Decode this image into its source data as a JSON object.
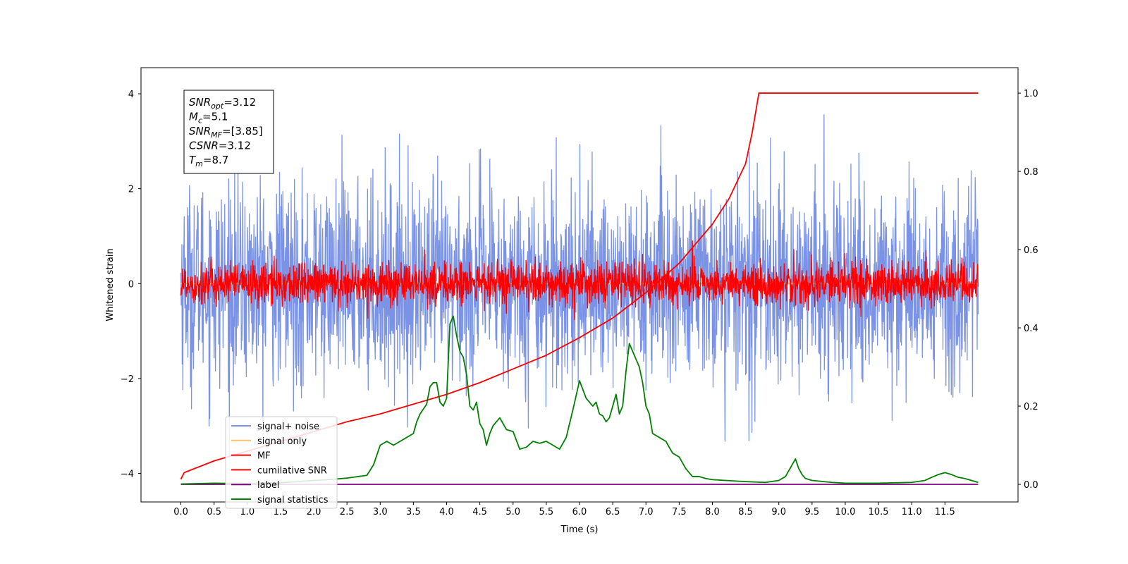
{
  "chart_data": {
    "type": "line",
    "xlabel": "Time (s)",
    "ylabel": "Whitened strain",
    "xlim": [
      -0.6,
      12.6
    ],
    "ylim_left": [
      -4.6,
      4.55
    ],
    "ylim_right": [
      -0.045,
      1.065
    ],
    "x_ticks": [
      "0.0",
      "0.5",
      "1.0",
      "1.5",
      "2.0",
      "2.5",
      "3.0",
      "3.5",
      "4.0",
      "4.5",
      "5.0",
      "5.5",
      "6.0",
      "6.5",
      "7.0",
      "7.5",
      "8.0",
      "8.5",
      "9.0",
      "9.5",
      "10.0",
      "10.5",
      "11.0",
      "11.5"
    ],
    "y_ticks_left": [
      "4",
      "2",
      "0",
      "−2",
      "−4"
    ],
    "y_ticks_right": [
      "1.0",
      "0.8",
      "0.6",
      "0.4",
      "0.2",
      "0.0"
    ],
    "legend_position": "lower left",
    "annotation": [
      {
        "base": "SNR",
        "sub": "opt",
        "value": "=3.12"
      },
      {
        "base": "M",
        "sub": "c",
        "value": "=5.1"
      },
      {
        "base": "SNR",
        "sub": "MF",
        "value": "=[3.85]"
      },
      {
        "base": "CSNR",
        "sub": "",
        "value": "=3.12"
      },
      {
        "base": "T",
        "sub": "m",
        "value": "=8.7"
      }
    ],
    "series": [
      {
        "name": "signal+ noise",
        "color": "#7b93e6",
        "axis": "left",
        "kind": "noise",
        "x_range": [
          0,
          12
        ],
        "sigma": 1.05,
        "spike_max": 4.1
      },
      {
        "name": "signal only",
        "color": "#ffc266",
        "axis": "left",
        "kind": "flat",
        "x": [
          0,
          12
        ],
        "y": [
          0,
          0
        ]
      },
      {
        "name": "MF",
        "color": "#ff0000",
        "axis": "left",
        "kind": "noise",
        "x_range": [
          0,
          12
        ],
        "sigma": 0.22,
        "spike_max": 1.0
      },
      {
        "name": "cumilative SNR",
        "color": "#ff0000",
        "axis": "right",
        "kind": "line",
        "x": [
          0.0,
          0.05,
          0.5,
          1.0,
          1.5,
          2.0,
          2.5,
          3.0,
          3.5,
          4.0,
          4.5,
          5.0,
          5.5,
          6.0,
          6.5,
          7.0,
          7.5,
          8.0,
          8.25,
          8.5,
          8.6,
          8.7,
          12.0
        ],
        "y": [
          0.013,
          0.03,
          0.06,
          0.085,
          0.11,
          0.135,
          0.16,
          0.18,
          0.205,
          0.23,
          0.26,
          0.295,
          0.33,
          0.375,
          0.425,
          0.49,
          0.565,
          0.665,
          0.73,
          0.82,
          0.9,
          1.0,
          1.0
        ]
      },
      {
        "name": "label",
        "color": "#800080",
        "axis": "right",
        "kind": "line",
        "x": [
          0.0,
          12.0
        ],
        "y": [
          0.0,
          0.0
        ]
      },
      {
        "name": "signal statistics",
        "color": "#008000",
        "axis": "right",
        "kind": "line",
        "x": [
          0.0,
          0.5,
          1.0,
          1.5,
          2.0,
          2.3,
          2.5,
          2.8,
          2.9,
          3.0,
          3.1,
          3.2,
          3.3,
          3.4,
          3.5,
          3.55,
          3.6,
          3.7,
          3.75,
          3.8,
          3.85,
          3.9,
          3.95,
          4.0,
          4.05,
          4.1,
          4.15,
          4.2,
          4.25,
          4.3,
          4.35,
          4.4,
          4.45,
          4.5,
          4.55,
          4.6,
          4.65,
          4.7,
          4.8,
          4.9,
          5.0,
          5.1,
          5.2,
          5.3,
          5.4,
          5.5,
          5.6,
          5.7,
          5.8,
          5.9,
          6.0,
          6.1,
          6.2,
          6.25,
          6.3,
          6.35,
          6.4,
          6.45,
          6.5,
          6.55,
          6.6,
          6.65,
          6.7,
          6.75,
          6.8,
          6.85,
          6.9,
          6.95,
          7.0,
          7.05,
          7.1,
          7.2,
          7.3,
          7.4,
          7.5,
          7.6,
          7.7,
          7.8,
          7.9,
          8.0,
          8.2,
          8.5,
          8.8,
          9.0,
          9.1,
          9.2,
          9.25,
          9.3,
          9.35,
          9.4,
          9.5,
          9.8,
          10.0,
          10.5,
          11.0,
          11.2,
          11.3,
          11.4,
          11.5,
          11.6,
          11.7,
          11.8,
          11.9,
          12.0
        ],
        "y": [
          0.001,
          0.003,
          0.002,
          0.004,
          0.01,
          0.013,
          0.016,
          0.023,
          0.05,
          0.1,
          0.11,
          0.1,
          0.11,
          0.12,
          0.13,
          0.16,
          0.18,
          0.205,
          0.25,
          0.26,
          0.26,
          0.21,
          0.2,
          0.22,
          0.41,
          0.43,
          0.38,
          0.34,
          0.325,
          0.28,
          0.2,
          0.19,
          0.21,
          0.155,
          0.14,
          0.1,
          0.13,
          0.15,
          0.17,
          0.14,
          0.135,
          0.09,
          0.095,
          0.11,
          0.105,
          0.11,
          0.1,
          0.09,
          0.12,
          0.19,
          0.265,
          0.22,
          0.2,
          0.21,
          0.18,
          0.175,
          0.16,
          0.17,
          0.2,
          0.23,
          0.18,
          0.2,
          0.29,
          0.36,
          0.34,
          0.32,
          0.3,
          0.26,
          0.2,
          0.18,
          0.13,
          0.12,
          0.11,
          0.08,
          0.07,
          0.04,
          0.02,
          0.02,
          0.015,
          0.012,
          0.01,
          0.007,
          0.005,
          0.01,
          0.02,
          0.05,
          0.065,
          0.04,
          0.025,
          0.015,
          0.01,
          0.005,
          0.003,
          0.003,
          0.005,
          0.01,
          0.018,
          0.025,
          0.03,
          0.025,
          0.018,
          0.015,
          0.01,
          0.005
        ]
      }
    ]
  }
}
